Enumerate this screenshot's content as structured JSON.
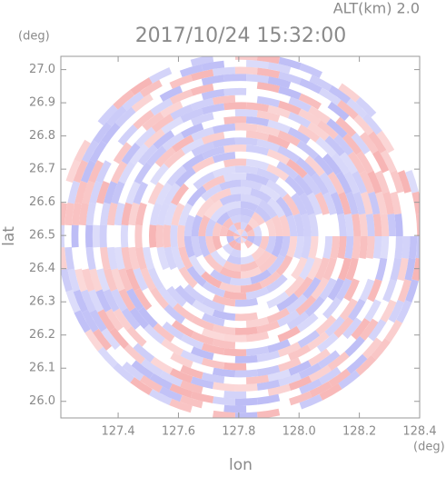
{
  "chart_data": {
    "type": "radar-ppi",
    "title": "2017/10/24 15:32:00",
    "subtitle": "ALT(km) 2.0",
    "x_label": "lon",
    "x_unit": "(deg)",
    "y_label": "lat",
    "y_unit": "(deg)",
    "xlim": [
      127.21,
      128.4
    ],
    "xticks": [
      127.4,
      127.6,
      127.8,
      {
        "value": 128,
        "label": "128.0"
      },
      128.2,
      128.4
    ],
    "ylim": [
      25.95,
      27.04
    ],
    "yticks": [
      {
        "value": 26,
        "label": "26.0"
      },
      26.1,
      26.2,
      26.3,
      26.4,
      26.5,
      26.6,
      26.7,
      26.8,
      26.9,
      {
        "value": 27,
        "label": "27.0"
      }
    ],
    "colors": [
      "#f7b4b4",
      "#bcbcf6"
    ]
  }
}
